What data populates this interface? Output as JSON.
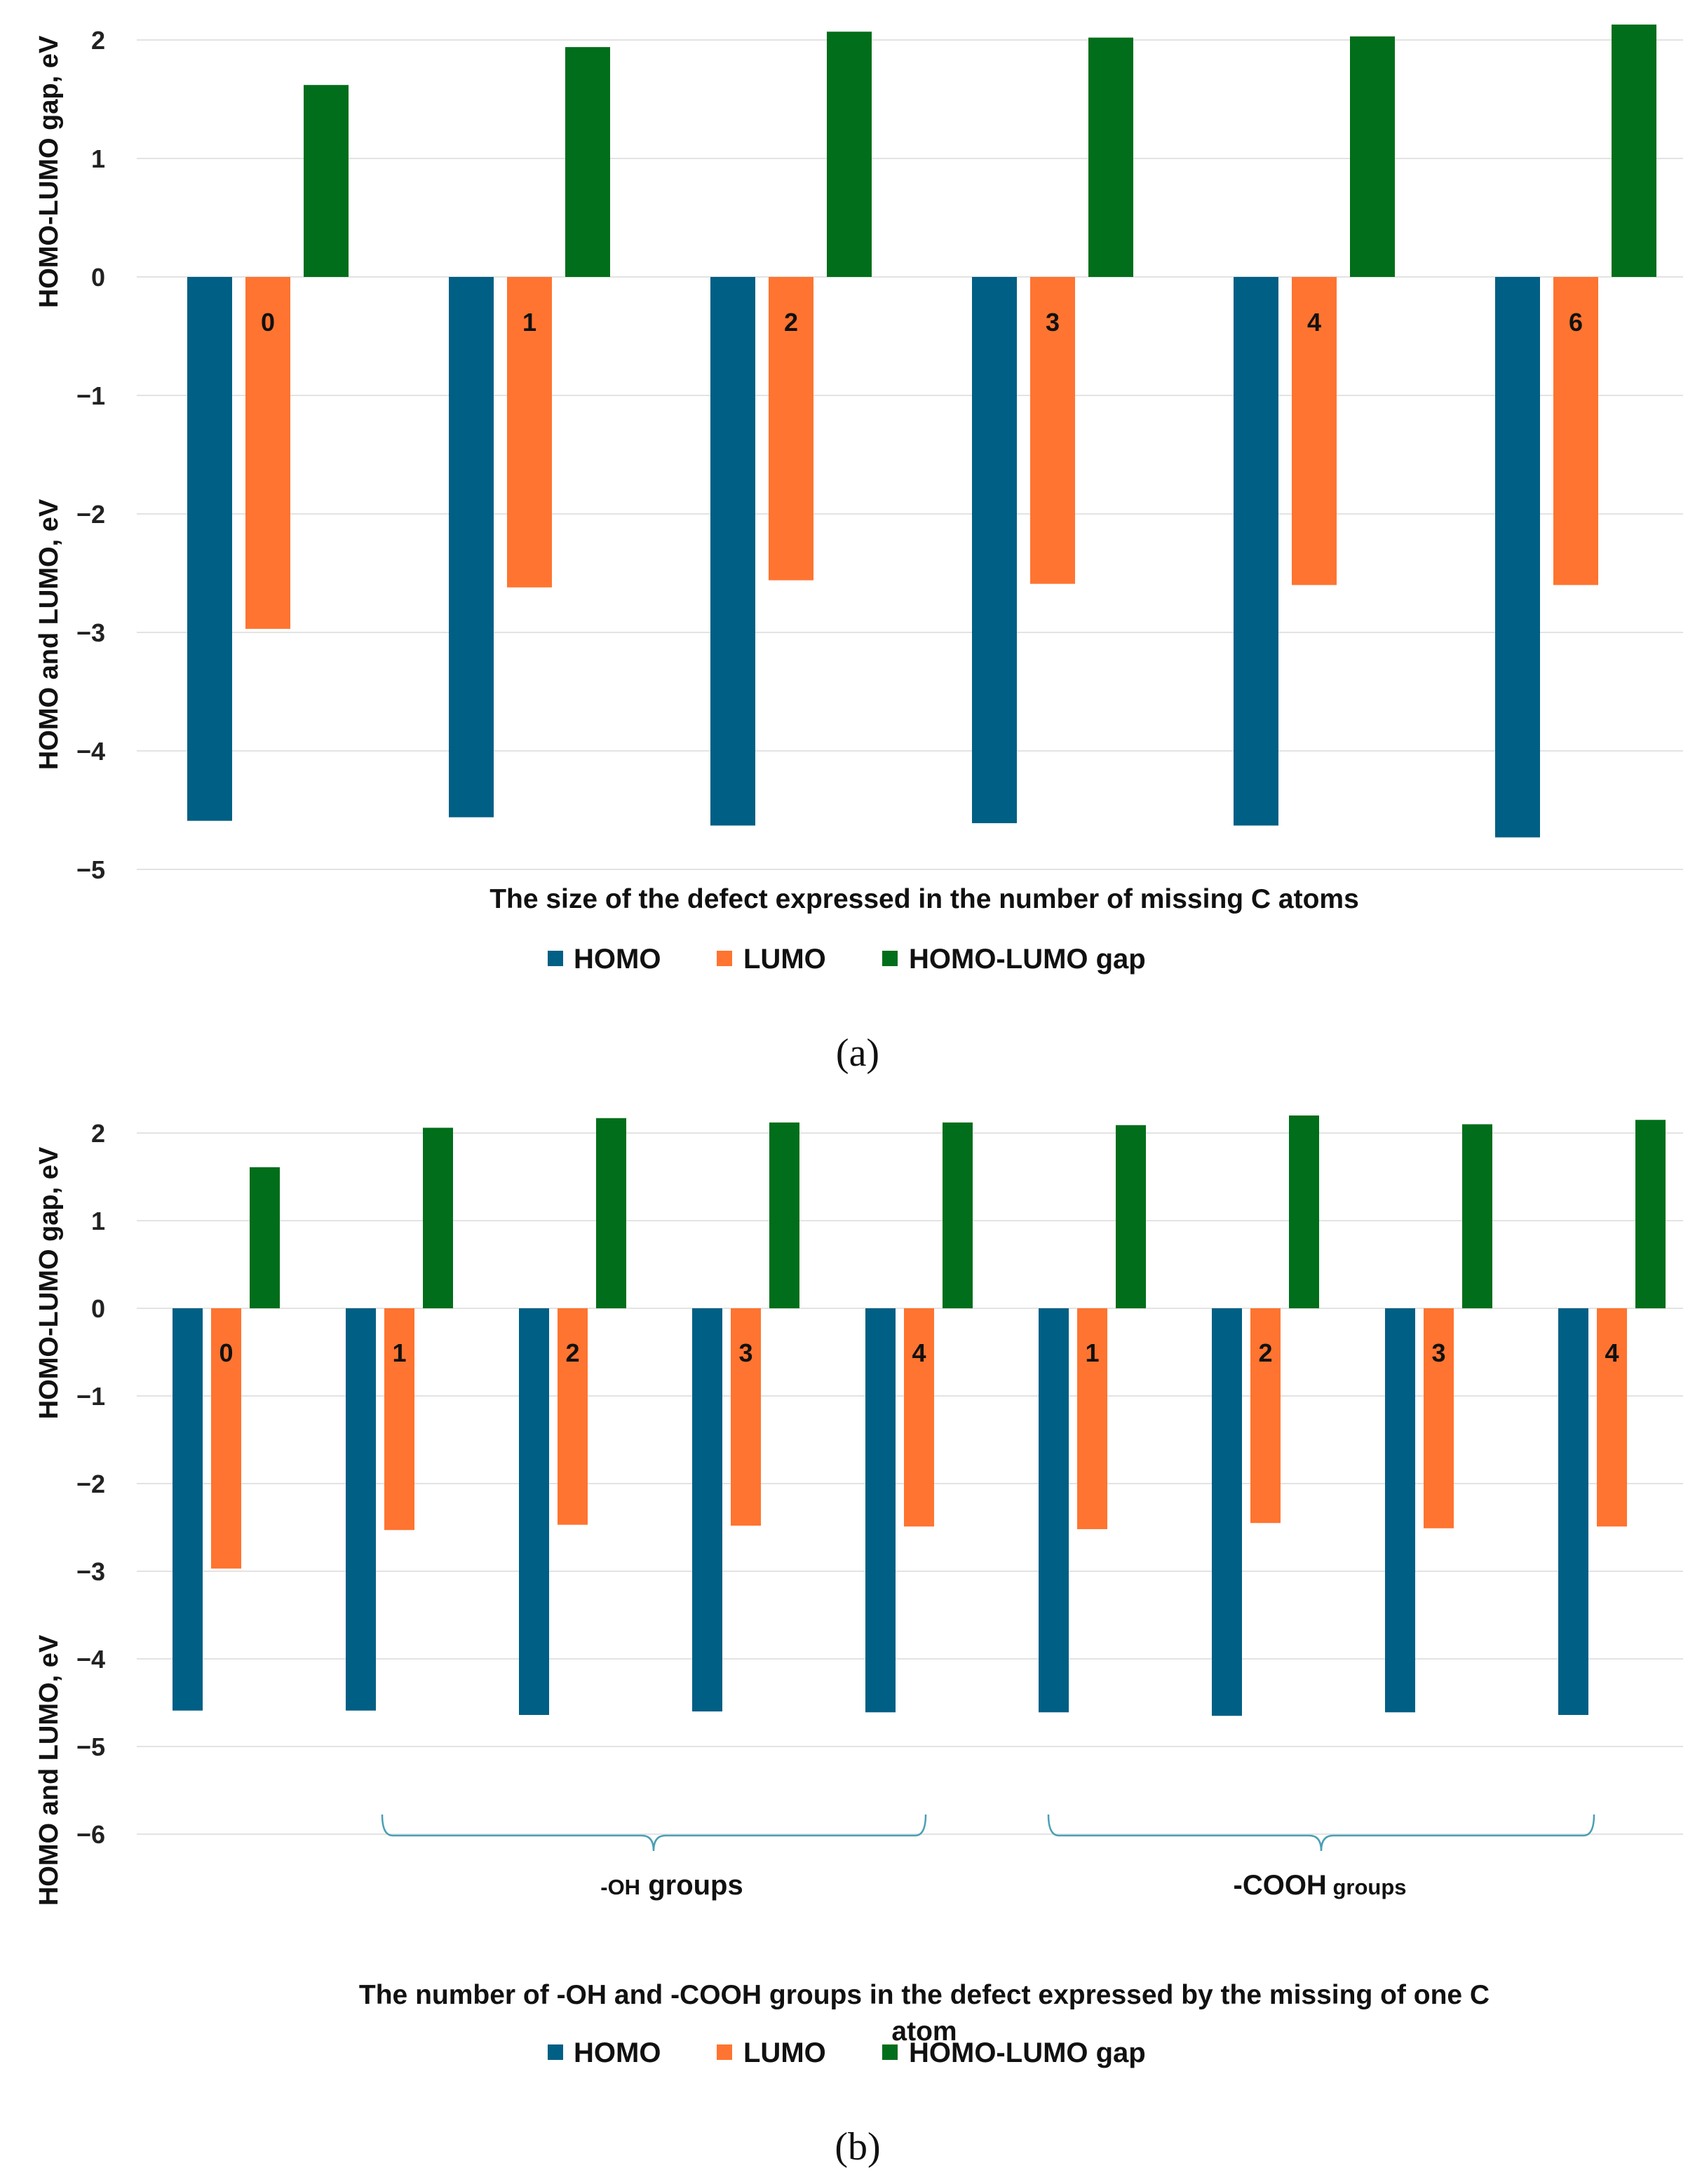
{
  "colors": {
    "homo": "#005F85",
    "lumo": "#FF7430",
    "gap": "#006E1A",
    "grid": "#e3e3e3",
    "brace": "#4a9fb5"
  },
  "chart_data": [
    {
      "type": "bar",
      "panel_caption": "(a)",
      "ylabel_upper": "HOMO-LUMO gap, eV",
      "ylabel_lower": "HOMO and LUMO, eV",
      "xlabel": "The size of the defect expressed in the number of missing C atoms",
      "ylim": [
        -5,
        2
      ],
      "yticks": [
        2,
        1,
        0,
        -1,
        -2,
        -3,
        -4,
        -5
      ],
      "categories": [
        "0",
        "1",
        "2",
        "3",
        "4",
        "6"
      ],
      "series": [
        {
          "name": "HOMO",
          "values": [
            -4.59,
            -4.56,
            -4.63,
            -4.61,
            -4.63,
            -4.73
          ]
        },
        {
          "name": "LUMO",
          "values": [
            -2.97,
            -2.62,
            -2.56,
            -2.59,
            -2.6,
            -2.6
          ]
        },
        {
          "name": "HOMO-LUMO gap",
          "values": [
            1.62,
            1.94,
            2.07,
            2.02,
            2.03,
            2.13
          ]
        }
      ],
      "legend": [
        "HOMO",
        "LUMO",
        "HOMO-LUMO gap"
      ]
    },
    {
      "type": "bar",
      "panel_caption": "(b)",
      "ylabel_upper": "HOMO-LUMO gap, eV",
      "ylabel_lower": "HOMO and LUMO, eV",
      "xlabel_line1": "The number of -OH and -COOH groups in the defect expressed by the missing of one C",
      "xlabel_line2": "atom",
      "ylim": [
        -6,
        2
      ],
      "yticks": [
        2,
        1,
        0,
        -1,
        -2,
        -3,
        -4,
        -5,
        -6
      ],
      "categories": [
        "0",
        "1",
        "2",
        "3",
        "4",
        "1",
        "2",
        "3",
        "4"
      ],
      "series": [
        {
          "name": "HOMO",
          "values": [
            -4.59,
            -4.59,
            -4.64,
            -4.6,
            -4.61,
            -4.61,
            -4.65,
            -4.61,
            -4.64
          ]
        },
        {
          "name": "LUMO",
          "values": [
            -2.97,
            -2.53,
            -2.47,
            -2.48,
            -2.49,
            -2.52,
            -2.45,
            -2.51,
            -2.49
          ]
        },
        {
          "name": "HOMO-LUMO gap",
          "values": [
            1.61,
            2.06,
            2.17,
            2.12,
            2.12,
            2.09,
            2.2,
            2.1,
            2.15
          ]
        }
      ],
      "groups": [
        {
          "prefix": "-OH",
          "suffix": " groups"
        },
        {
          "prefix": "-COOH",
          "suffix": " groups"
        }
      ],
      "legend": [
        "HOMO",
        "LUMO",
        "HOMO-LUMO gap"
      ]
    }
  ]
}
